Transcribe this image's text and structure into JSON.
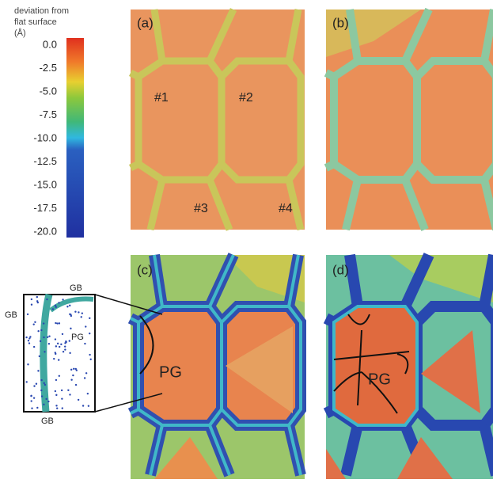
{
  "colorbar": {
    "title": [
      "deviation from",
      "flat surface",
      "(Å)"
    ],
    "ticks": [
      "0.0",
      "-2.5",
      "-5.0",
      "-7.5",
      "-10.0",
      "-12.5",
      "-15.0",
      "-17.5",
      "-20.0"
    ]
  },
  "panels": [
    {
      "label": "(a)",
      "grains": [
        "#1",
        "#2",
        "#3",
        "#4"
      ]
    },
    {
      "label": "(b)"
    },
    {
      "label": "(c)",
      "annotation": "PG"
    },
    {
      "label": "(d)",
      "annotation": "PG"
    }
  ],
  "inset": {
    "labels": [
      "GB",
      "GB",
      "PG",
      "GB"
    ]
  }
}
